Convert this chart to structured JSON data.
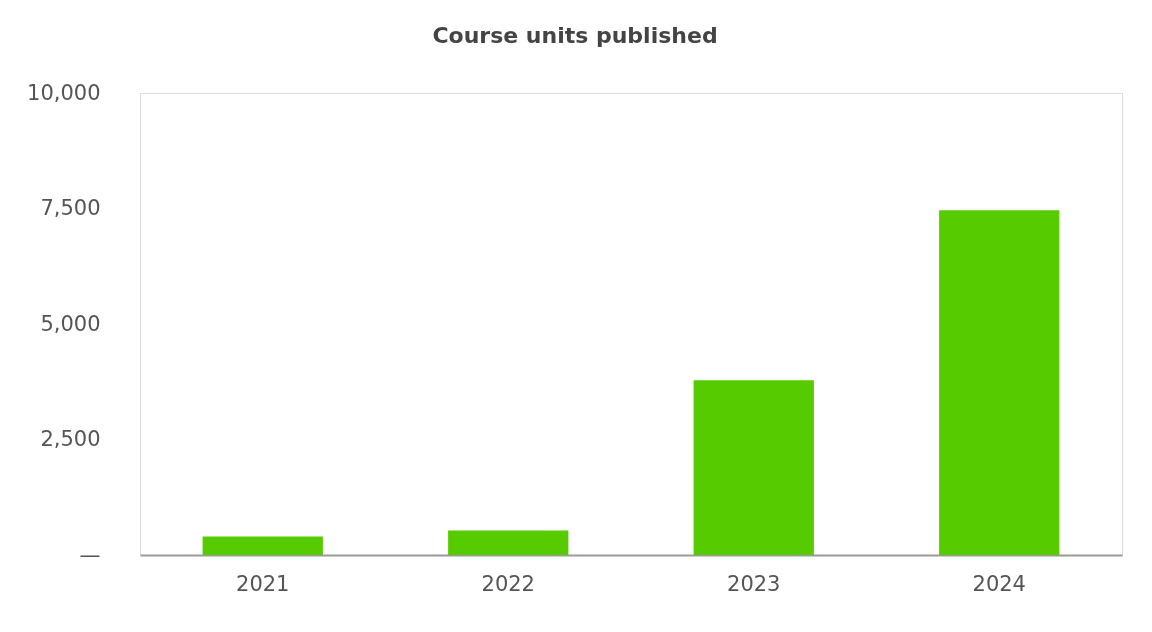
{
  "chart_data": {
    "type": "bar",
    "title": "Course units published",
    "categories": [
      "2021",
      "2022",
      "2023",
      "2024"
    ],
    "values": [
      400,
      530,
      3780,
      7460
    ],
    "color": "#56cc00",
    "ylim": [
      0,
      10000
    ],
    "yticks": [
      {
        "value": 0,
        "label": "—"
      },
      {
        "value": 2500,
        "label": "2,500"
      },
      {
        "value": 5000,
        "label": "5,000"
      },
      {
        "value": 7500,
        "label": "7,500"
      },
      {
        "value": 10000,
        "label": "10,000"
      }
    ],
    "grid": false
  }
}
